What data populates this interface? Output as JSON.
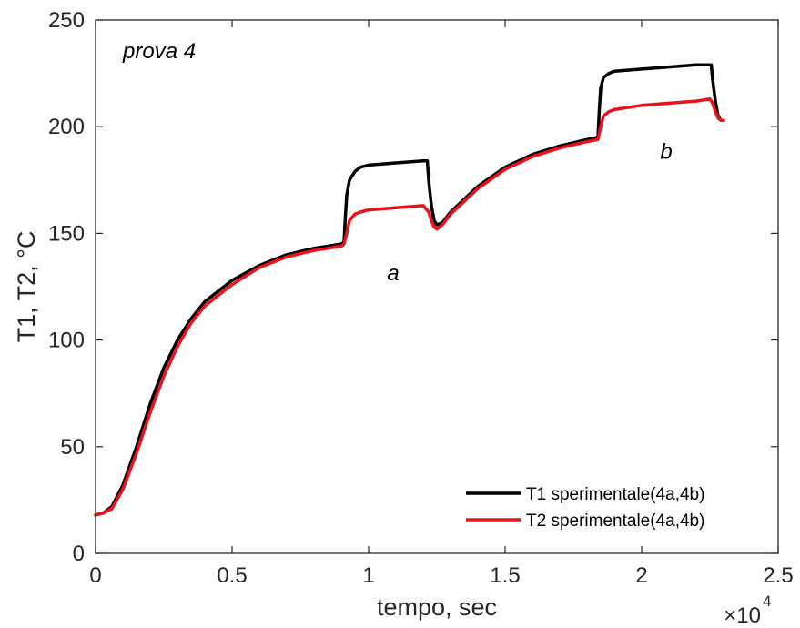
{
  "chart_data": {
    "type": "line",
    "xlabel": "tempo, sec",
    "ylabel": "T1, T2, °C",
    "x_multiplier": {
      "base": "×10",
      "exponent": "4"
    },
    "xlim": [
      0,
      2.5
    ],
    "ylim": [
      0,
      250
    ],
    "x_ticks": [
      0,
      0.5,
      1,
      1.5,
      2,
      2.5
    ],
    "x_tick_labels": [
      "0",
      "0.5",
      "1",
      "1.5",
      "2",
      "2.5"
    ],
    "y_ticks": [
      0,
      50,
      100,
      150,
      200,
      250
    ],
    "y_tick_labels": [
      "0",
      "50",
      "100",
      "150",
      "200",
      "250"
    ],
    "grid": false,
    "legend_position": "bottom-right",
    "annotations": [
      {
        "text": "prova 4",
        "x": 0.1,
        "y": 232
      },
      {
        "text": "a",
        "x": 1.09,
        "y": 128
      },
      {
        "text": "b",
        "x": 2.09,
        "y": 185
      }
    ],
    "series": [
      {
        "name": "T1 sperimentale(4a,4b)",
        "color": "#000000",
        "x": [
          0,
          0.03,
          0.06,
          0.1,
          0.15,
          0.2,
          0.25,
          0.3,
          0.35,
          0.4,
          0.5,
          0.6,
          0.7,
          0.8,
          0.9,
          0.91,
          0.915,
          0.92,
          0.93,
          0.95,
          0.97,
          1.0,
          1.1,
          1.2,
          1.215,
          1.22,
          1.23,
          1.24,
          1.25,
          1.27,
          1.3,
          1.4,
          1.5,
          1.6,
          1.7,
          1.8,
          1.84,
          1.845,
          1.85,
          1.86,
          1.88,
          1.9,
          2.0,
          2.1,
          2.2,
          2.255,
          2.26,
          2.27,
          2.28,
          2.29,
          2.3
        ],
        "y": [
          18,
          19,
          22,
          32,
          50,
          70,
          87,
          100,
          110,
          118,
          128,
          135,
          140,
          143,
          145,
          146,
          158,
          168,
          175,
          179,
          181,
          182,
          183,
          184,
          184,
          175,
          163,
          156,
          154,
          155,
          160,
          172,
          181,
          187,
          191,
          194,
          195,
          208,
          218,
          223,
          225,
          226,
          227,
          228,
          229,
          229,
          222,
          212,
          205,
          203,
          203
        ]
      },
      {
        "name": "T2 sperimentale(4a,4b)",
        "color": "#e8131b",
        "x": [
          0,
          0.03,
          0.06,
          0.1,
          0.15,
          0.2,
          0.25,
          0.3,
          0.35,
          0.4,
          0.5,
          0.6,
          0.7,
          0.8,
          0.9,
          0.91,
          0.92,
          0.93,
          0.95,
          0.97,
          1.0,
          1.1,
          1.2,
          1.22,
          1.23,
          1.24,
          1.25,
          1.27,
          1.3,
          1.4,
          1.5,
          1.6,
          1.7,
          1.8,
          1.84,
          1.85,
          1.86,
          1.88,
          1.9,
          2.0,
          2.1,
          2.2,
          2.25,
          2.26,
          2.27,
          2.28,
          2.29,
          2.3
        ],
        "y": [
          18,
          19,
          21,
          30,
          47,
          66,
          83,
          97,
          108,
          116,
          126,
          134,
          139,
          142,
          144,
          145,
          150,
          156,
          159,
          160,
          161,
          162,
          163,
          160,
          156,
          153,
          152,
          154,
          159,
          171,
          180,
          186,
          190,
          193,
          194,
          200,
          205,
          207,
          208,
          210,
          211,
          212,
          213,
          211,
          207,
          204,
          203,
          203
        ]
      }
    ]
  }
}
